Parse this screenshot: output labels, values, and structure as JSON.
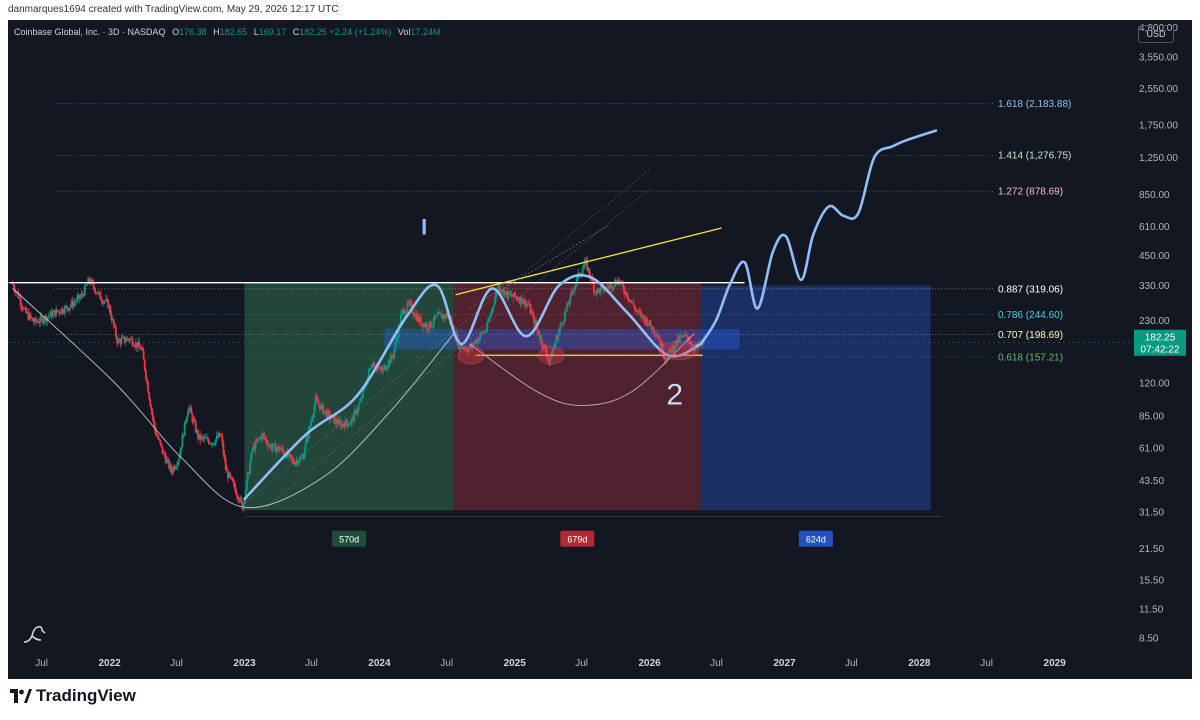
{
  "header": {
    "attribution": "danmarques1694 created with TradingView.com, May 29, 2026 12:17 UTC"
  },
  "legend": {
    "symbol": "Coinbase Global, Inc. · 3D · NASDAQ",
    "open_label": "O",
    "open": "176.38",
    "high_label": "H",
    "high": "182.65",
    "low_label": "L",
    "low": "169.17",
    "close_label": "C",
    "close": "182.25",
    "change": "+2.24 (+1.24%)",
    "vol_label": "Vol",
    "vol": "17.24M"
  },
  "currency": "USD",
  "price_tag": {
    "price": "182.25",
    "countdown": "07:42:22",
    "color": "#089981"
  },
  "colors": {
    "background": "#131722",
    "up": "#089981",
    "down": "#f23645",
    "projection": "#90bff9",
    "green_zone": "#26503e",
    "red_zone": "#5a2430",
    "blue_zone": "#1e3470",
    "yellow": "#f5e33c"
  },
  "footer": {
    "brand": "TradingView",
    "logo_icon": "tradingview-logo-icon"
  },
  "watermark_icon": "dinosaur-icon",
  "chart_data": {
    "type": "candlestick",
    "y_scale": "log",
    "ylim": [
      7.5,
      5200
    ],
    "xlim": [
      "2021-04-01",
      "2029-08-01"
    ],
    "y_ticks": [
      "4,800.00",
      "3,550.00",
      "2,550.00",
      "1,750.00",
      "1,250.00",
      "850.00",
      "610.00",
      "450.00",
      "330.00",
      "230.00",
      "120.00",
      "85.00",
      "61.00",
      "43.50",
      "31.50",
      "21.50",
      "15.50",
      "11.50",
      "8.50"
    ],
    "x_ticks": [
      {
        "label": "Jul",
        "date": "2021-07-01",
        "bold": false
      },
      {
        "label": "2022",
        "date": "2022-01-01",
        "bold": true
      },
      {
        "label": "Jul",
        "date": "2022-07-01",
        "bold": false
      },
      {
        "label": "2023",
        "date": "2023-01-01",
        "bold": true
      },
      {
        "label": "Jul",
        "date": "2023-07-01",
        "bold": false
      },
      {
        "label": "2024",
        "date": "2024-01-01",
        "bold": true
      },
      {
        "label": "Jul",
        "date": "2024-07-01",
        "bold": false
      },
      {
        "label": "2025",
        "date": "2025-01-01",
        "bold": true
      },
      {
        "label": "Jul",
        "date": "2025-07-01",
        "bold": false
      },
      {
        "label": "2026",
        "date": "2026-01-01",
        "bold": true
      },
      {
        "label": "Jul",
        "date": "2026-07-01",
        "bold": false
      },
      {
        "label": "2027",
        "date": "2027-01-01",
        "bold": true
      },
      {
        "label": "Jul",
        "date": "2027-07-01",
        "bold": false
      },
      {
        "label": "2028",
        "date": "2028-01-01",
        "bold": true
      },
      {
        "label": "Jul",
        "date": "2028-07-01",
        "bold": false
      },
      {
        "label": "2029",
        "date": "2029-01-01",
        "bold": true
      }
    ],
    "price_path": [
      [
        "2021-04-14",
        340
      ],
      [
        "2021-05-01",
        300
      ],
      [
        "2021-05-20",
        250
      ],
      [
        "2021-06-15",
        225
      ],
      [
        "2021-07-10",
        235
      ],
      [
        "2021-08-10",
        250
      ],
      [
        "2021-09-15",
        265
      ],
      [
        "2021-10-20",
        295
      ],
      [
        "2021-11-10",
        350
      ],
      [
        "2021-12-05",
        300
      ],
      [
        "2022-01-01",
        270
      ],
      [
        "2022-01-25",
        185
      ],
      [
        "2022-03-01",
        190
      ],
      [
        "2022-04-01",
        170
      ],
      [
        "2022-05-05",
        75
      ],
      [
        "2022-05-25",
        60
      ],
      [
        "2022-06-20",
        48
      ],
      [
        "2022-07-10",
        55
      ],
      [
        "2022-08-05",
        95
      ],
      [
        "2022-09-01",
        68
      ],
      [
        "2022-10-10",
        65
      ],
      [
        "2022-11-01",
        70
      ],
      [
        "2022-11-15",
        48
      ],
      [
        "2022-12-10",
        40
      ],
      [
        "2022-12-30",
        33
      ],
      [
        "2023-01-25",
        60
      ],
      [
        "2023-02-20",
        70
      ],
      [
        "2023-03-15",
        62
      ],
      [
        "2023-04-15",
        60
      ],
      [
        "2023-05-15",
        53
      ],
      [
        "2023-06-10",
        55
      ],
      [
        "2023-07-15",
        100
      ],
      [
        "2023-08-20",
        85
      ],
      [
        "2023-09-20",
        78
      ],
      [
        "2023-10-20",
        80
      ],
      [
        "2023-11-15",
        100
      ],
      [
        "2023-12-15",
        150
      ],
      [
        "2024-01-10",
        135
      ],
      [
        "2024-02-10",
        160
      ],
      [
        "2024-03-05",
        250
      ],
      [
        "2024-03-25",
        270
      ],
      [
        "2024-04-20",
        230
      ],
      [
        "2024-05-15",
        215
      ],
      [
        "2024-06-10",
        240
      ],
      [
        "2024-07-10",
        240
      ],
      [
        "2024-08-05",
        180
      ],
      [
        "2024-09-01",
        170
      ],
      [
        "2024-09-25",
        190
      ],
      [
        "2024-10-20",
        210
      ],
      [
        "2024-11-20",
        330
      ],
      [
        "2024-12-15",
        300
      ],
      [
        "2025-01-15",
        290
      ],
      [
        "2025-02-10",
        270
      ],
      [
        "2025-03-10",
        200
      ],
      [
        "2025-04-08",
        150
      ],
      [
        "2025-05-01",
        200
      ],
      [
        "2025-05-25",
        260
      ],
      [
        "2025-06-20",
        350
      ],
      [
        "2025-07-15",
        420
      ],
      [
        "2025-08-10",
        310
      ],
      [
        "2025-09-10",
        320
      ],
      [
        "2025-10-10",
        350
      ],
      [
        "2025-11-05",
        300
      ],
      [
        "2025-12-01",
        250
      ],
      [
        "2025-12-25",
        230
      ],
      [
        "2026-01-25",
        200
      ],
      [
        "2026-02-15",
        155
      ],
      [
        "2026-03-05",
        170
      ],
      [
        "2026-03-25",
        190
      ],
      [
        "2026-04-15",
        195
      ],
      [
        "2026-05-05",
        172
      ],
      [
        "2026-05-29",
        182
      ]
    ],
    "drawings": {
      "resistance": {
        "price": 340,
        "from": "2021-04-14",
        "to": "2026-09-15",
        "color": "#ffffff"
      },
      "support": {
        "price": 160,
        "from": "2024-07-25",
        "to": "2026-05-25",
        "color": "#f5e33c"
      },
      "wedge_top": {
        "from": [
          "2024-07-25",
          300
        ],
        "to": [
          "2026-07-15",
          600
        ],
        "color": "#f5e33c"
      },
      "fib_levels": [
        {
          "ratio": "1.618",
          "label": "1.618 (2,183.88)",
          "price": 2183.88,
          "color": "#90bff9"
        },
        {
          "ratio": "1.414",
          "label": "1.414 (1,276.75)",
          "price": 1276.75,
          "color": "#c8e6c9"
        },
        {
          "ratio": "1.272",
          "label": "1.272 (878.69)",
          "price": 878.69,
          "color": "#f8bbd0"
        },
        {
          "ratio": "0.887",
          "label": "0.887 (319.06)",
          "price": 319.06,
          "color": "#ffffff"
        },
        {
          "ratio": "0.786",
          "label": "0.786 (244.60)",
          "price": 244.6,
          "color": "#4dd0e1"
        },
        {
          "ratio": "0.707",
          "label": "0.707 (198.69)",
          "price": 198.69,
          "color": "#fff9c4"
        },
        {
          "ratio": "0.618",
          "label": "0.618 (157.21)",
          "price": 157.21,
          "color": "#66bb6a"
        }
      ],
      "zones": [
        {
          "from": "2023-01-01",
          "to": "2024-07-20",
          "low": 32,
          "high": 340,
          "kind": "green",
          "label": "570d"
        },
        {
          "from": "2024-07-20",
          "to": "2026-05-20",
          "low": 32,
          "high": 340,
          "kind": "red",
          "label": "679d"
        },
        {
          "from": "2026-05-20",
          "to": "2028-02-01",
          "low": 32,
          "high": 330,
          "kind": "blue",
          "label": "624d"
        }
      ],
      "projection": [
        [
          "2026-05-20",
          180
        ],
        [
          "2026-06-30",
          230
        ],
        [
          "2026-08-05",
          330
        ],
        [
          "2026-09-15",
          420
        ],
        [
          "2026-10-20",
          260
        ],
        [
          "2026-12-01",
          470
        ],
        [
          "2027-01-05",
          550
        ],
        [
          "2027-02-15",
          350
        ],
        [
          "2027-03-20",
          560
        ],
        [
          "2027-05-01",
          750
        ],
        [
          "2027-06-10",
          680
        ],
        [
          "2027-07-20",
          700
        ],
        [
          "2027-09-01",
          1250
        ],
        [
          "2027-10-20",
          1400
        ],
        [
          "2027-12-01",
          1500
        ],
        [
          "2028-02-15",
          1650
        ]
      ],
      "cup_curve": [
        [
          "2021-04-14",
          320
        ],
        [
          "2022-01-15",
          120
        ],
        [
          "2022-07-15",
          55
        ],
        [
          "2023-01-01",
          33
        ],
        [
          "2023-08-01",
          45
        ],
        [
          "2024-02-01",
          90
        ],
        [
          "2024-07-20",
          200
        ]
      ],
      "text_mark_1": "I",
      "text_mark_2": "2"
    }
  }
}
